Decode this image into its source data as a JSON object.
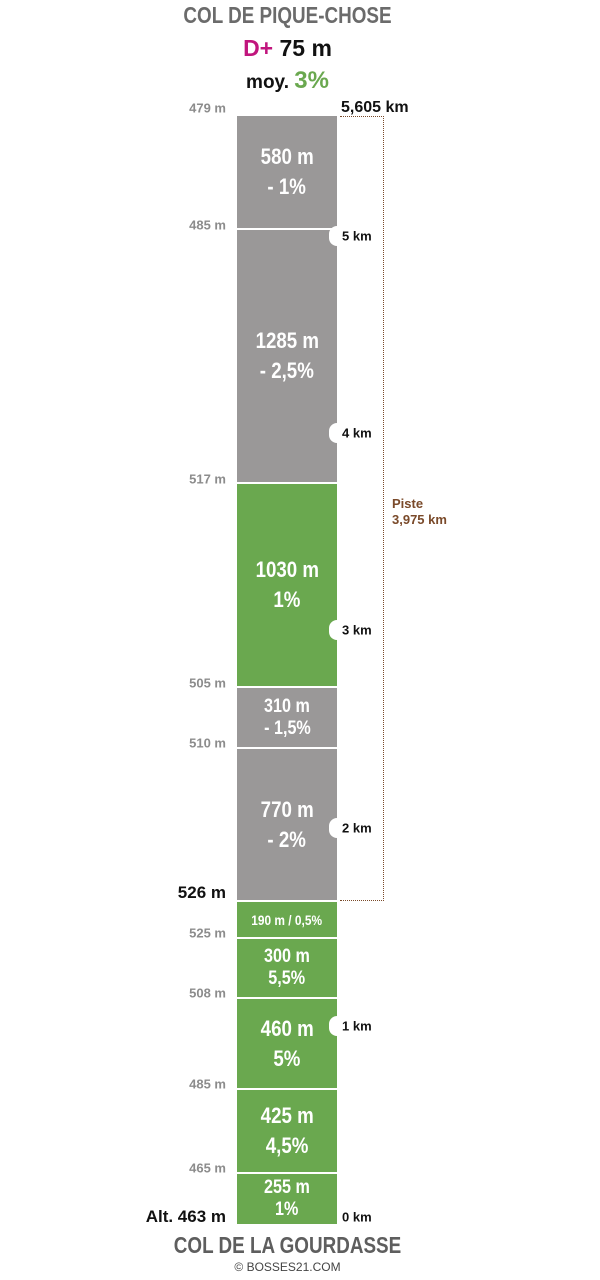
{
  "header": {
    "title": "COL DE PIQUE-CHOSE",
    "elevation_gain_label": "D+",
    "elevation_gain_value": "75 m",
    "average_label": "moy.",
    "average_value": "3%"
  },
  "footer": {
    "title": "COL DE LA GOURDASSE",
    "credit": "© BOSSES21.COM"
  },
  "total_distance": "5,605 km",
  "piste": {
    "label": "Piste",
    "distance": "3,975 km"
  },
  "colors": {
    "uphill": "#6aa84f",
    "downhill": "#9a9898",
    "dplus": "#c1157d",
    "piste": "#7a4a2a"
  },
  "segments": [
    {
      "length": "580 m",
      "grade": "- 1%",
      "type": "downhill"
    },
    {
      "length": "1285 m",
      "grade": "- 2,5%",
      "type": "downhill"
    },
    {
      "length": "1030 m",
      "grade": "1%",
      "type": "uphill"
    },
    {
      "length": "310 m",
      "grade": "- 1,5%",
      "type": "downhill"
    },
    {
      "length": "770 m",
      "grade": "- 2%",
      "type": "downhill"
    },
    {
      "length": "190 m / 0,5%",
      "grade": "",
      "type": "uphill"
    },
    {
      "length": "300 m",
      "grade": "5,5%",
      "type": "uphill"
    },
    {
      "length": "460 m",
      "grade": "5%",
      "type": "uphill"
    },
    {
      "length": "425 m",
      "grade": "4,5%",
      "type": "uphill"
    },
    {
      "length": "255 m",
      "grade": "1%",
      "type": "uphill"
    }
  ],
  "altitudes": [
    "479 m",
    "485 m",
    "517 m",
    "505 m",
    "510 m",
    "526 m",
    "525 m",
    "508 m",
    "485 m",
    "465 m",
    "Alt. 463 m"
  ],
  "km_markers": [
    "5 km",
    "4 km",
    "3 km",
    "2 km",
    "1 km",
    "0 km"
  ]
}
